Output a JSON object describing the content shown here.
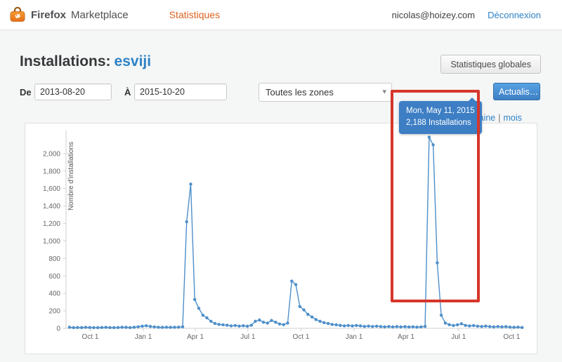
{
  "header": {
    "brand": {
      "firefox": "Firefox",
      "marketplace": "Marketplace"
    },
    "nav": {
      "statistics_label": "Statistiques"
    },
    "user": {
      "email": "nicolas@hoizey.com",
      "logout_label": "Déconnexion"
    }
  },
  "page": {
    "title_prefix": "Installations:",
    "title_app": "esviji",
    "global_stats_button": "Statistiques globales"
  },
  "filters": {
    "from_label": "De",
    "from_value": "2013-08-20",
    "to_label": "À",
    "to_value": "2015-10-20",
    "zone_select_value": "Toutes les zones",
    "refresh_button": "Actualis…",
    "period_links": [
      "semaine",
      "mois"
    ],
    "period_separator": "|"
  },
  "tooltip": {
    "line1": "Mon, May 11, 2015",
    "line2": "2,188 Installations"
  },
  "colors": {
    "accent-orange": "#dd6321",
    "link-blue": "#2e82c6",
    "tooltip-bg": "#3d7ec4",
    "annotation-red": "#d6362a",
    "line-blue": "#4e8fca"
  },
  "chart_data": {
    "type": "line",
    "title": "",
    "xlabel": "",
    "ylabel": "Nombre d'installations",
    "ylim": [
      0,
      2200
    ],
    "y_ticks": [
      0,
      200,
      400,
      600,
      800,
      1000,
      1200,
      1400,
      1600,
      1800,
      2000
    ],
    "x_range": [
      "2013-08-20",
      "2015-10-20"
    ],
    "x_ticks": [
      {
        "date": "2013-10-01",
        "label": "Oct 1"
      },
      {
        "date": "2014-01-01",
        "label": "Jan 1"
      },
      {
        "date": "2014-04-01",
        "label": "Apr 1"
      },
      {
        "date": "2014-07-01",
        "label": "Jul 1"
      },
      {
        "date": "2014-10-01",
        "label": "Oct 1"
      },
      {
        "date": "2015-01-01",
        "label": "Jan 1"
      },
      {
        "date": "2015-04-01",
        "label": "Apr 1"
      },
      {
        "date": "2015-07-01",
        "label": "Jul 1"
      },
      {
        "date": "2015-10-01",
        "label": "Oct 1"
      }
    ],
    "legend": "none",
    "grid": false,
    "series": [
      {
        "name": "Installations",
        "color": "#4e8fca",
        "start": "2013-08-26",
        "interval_days": 7,
        "values": [
          12,
          8,
          10,
          9,
          11,
          10,
          9,
          8,
          10,
          11,
          9,
          8,
          10,
          13,
          11,
          9,
          12,
          18,
          24,
          30,
          22,
          16,
          12,
          11,
          13,
          11,
          12,
          14,
          18,
          1220,
          1650,
          330,
          230,
          150,
          120,
          80,
          55,
          45,
          40,
          35,
          28,
          32,
          26,
          30,
          24,
          35,
          80,
          95,
          70,
          60,
          90,
          70,
          50,
          42,
          60,
          540,
          500,
          250,
          210,
          160,
          130,
          100,
          80,
          65,
          55,
          45,
          40,
          34,
          28,
          32,
          27,
          33,
          28,
          22,
          26,
          21,
          25,
          20,
          17,
          21,
          16,
          20,
          16,
          19,
          15,
          18,
          14,
          17,
          22,
          2188,
          2100,
          750,
          150,
          60,
          42,
          32,
          40,
          52,
          34,
          27,
          31,
          25,
          21,
          26,
          20,
          16,
          21,
          16,
          19,
          14,
          11,
          14,
          10
        ]
      }
    ],
    "highlight": {
      "date": "2015-05-11",
      "value": 2188
    }
  }
}
